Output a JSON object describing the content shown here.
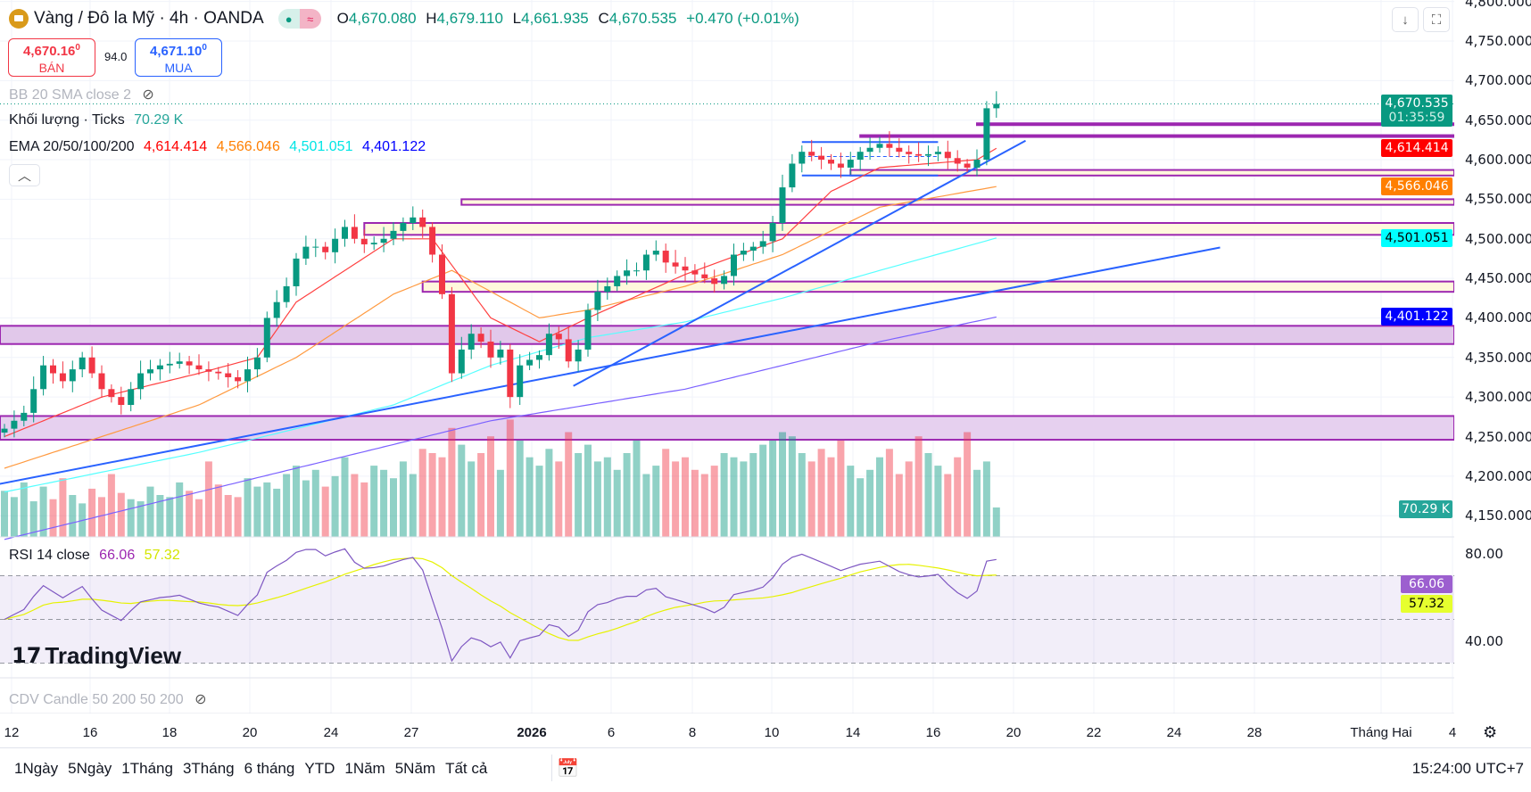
{
  "header": {
    "symbol": "Vàng / Đô la Mỹ · 4h · OANDA",
    "o_label": "O",
    "o": "4,670.080",
    "h_label": "H",
    "h": "4,679.110",
    "l_label": "L",
    "l": "4,661.935",
    "c_label": "C",
    "c": "4,670.535",
    "change": "+0.470 (+0.01%)",
    "market_open_icon": "dot-icon",
    "compare_icon": "wave-icon"
  },
  "trade": {
    "sell_price": "4,670.16",
    "sell_sup": "0",
    "sell_label": "BÁN",
    "spread": "94.0",
    "buy_price": "4,671.10",
    "buy_sup": "0",
    "buy_label": "MUA"
  },
  "indicators": {
    "bb": "BB 20 SMA close 2",
    "volume": "Khối lượng · Ticks",
    "volume_value": "70.29 K",
    "ema": "EMA 20/50/100/200",
    "ema20": "4,614.414",
    "ema50": "4,566.046",
    "ema100": "4,501.051",
    "ema200": "4,401.122",
    "rsi": "RSI 14 close",
    "rsi_value": "66.06",
    "rsi_ma": "57.32",
    "cdv": "CDV Candle 50 200 50 200"
  },
  "price_axis": [
    "4,800.000",
    "4,750.000",
    "4,700.000",
    "4,650.000",
    "4,600.000",
    "4,550.000",
    "4,500.000",
    "4,450.000",
    "4,400.000",
    "4,350.000",
    "4,300.000",
    "4,250.000",
    "4,200.000",
    "4,150.000"
  ],
  "price_axis_values": [
    4800,
    4750,
    4700,
    4650,
    4600,
    4550,
    4500,
    4450,
    4400,
    4350,
    4300,
    4250,
    4200,
    4150
  ],
  "rsi_axis": [
    "80.00",
    "40.00"
  ],
  "tags": {
    "last": "4,670.535",
    "countdown": "01:35:59",
    "ema20": "4,614.414",
    "ema50": "4,566.046",
    "ema100": "4,501.051",
    "ema200": "4,401.122",
    "volume": "70.29 K",
    "rsi": "66.06",
    "rsi_ma": "57.32"
  },
  "colors": {
    "up": "#089981",
    "down": "#F23645",
    "ema20": "#FF0000",
    "ema50": "#FF7F00",
    "ema100": "#00FFFF",
    "ema200": "#0000FF",
    "rsi": "#9C27B0",
    "rsi_ma": "#E6FF00",
    "drawing": "#9C27B0",
    "trend": "#2962FF"
  },
  "time_axis": [
    "12",
    "16",
    "18",
    "20",
    "24",
    "27",
    "2026",
    "6",
    "8",
    "10",
    "14",
    "16",
    "20",
    "22",
    "24",
    "28",
    "Tháng Hai",
    "4"
  ],
  "range_buttons": [
    "1Ngày",
    "5Ngày",
    "1Tháng",
    "3Tháng",
    "6 tháng",
    "YTD",
    "1Năm",
    "5Năm",
    "Tất cả"
  ],
  "clock": "15:24:00 UTC+7",
  "watermark": "TradingView",
  "chart_data": {
    "type": "candlestick",
    "first_open": 4255,
    "closes": [
      4260,
      4270,
      4280,
      4310,
      4340,
      4330,
      4320,
      4335,
      4350,
      4330,
      4310,
      4300,
      4290,
      4310,
      4330,
      4335,
      4340,
      4342,
      4345,
      4340,
      4335,
      4332,
      4330,
      4325,
      4320,
      4335,
      4350,
      4400,
      4420,
      4440,
      4475,
      4490,
      4490,
      4483,
      4500,
      4515,
      4500,
      4493,
      4495,
      4500,
      4510,
      4520,
      4527,
      4515,
      4480,
      4430,
      4330,
      4360,
      4380,
      4370,
      4350,
      4360,
      4300,
      4340,
      4347,
      4353,
      4380,
      4373,
      4345,
      4360,
      4410,
      4433,
      4440,
      4453,
      4460,
      4460,
      4480,
      4485,
      4470,
      4465,
      4460,
      4455,
      4450,
      4443,
      4453,
      4480,
      4485,
      4490,
      4497,
      4520,
      4565,
      4595,
      4610,
      4605,
      4600,
      4595,
      4590,
      4600,
      4610,
      4615,
      4620,
      4615,
      4610,
      4607,
      4605,
      4607,
      4610,
      4602,
      4595,
      4590,
      4600,
      4665,
      4670.535
    ],
    "volumes_k": [
      110,
      95,
      130,
      85,
      120,
      90,
      140,
      100,
      80,
      115,
      95,
      150,
      105,
      90,
      85,
      120,
      100,
      95,
      130,
      110,
      90,
      180,
      125,
      100,
      95,
      140,
      120,
      130,
      115,
      150,
      170,
      135,
      160,
      120,
      145,
      190,
      150,
      130,
      170,
      160,
      140,
      180,
      150,
      210,
      200,
      190,
      260,
      220,
      180,
      200,
      240,
      160,
      280,
      230,
      190,
      170,
      210,
      180,
      250,
      200,
      220,
      180,
      190,
      160,
      200,
      230,
      150,
      170,
      210,
      180,
      190,
      160,
      150,
      170,
      200,
      190,
      180,
      200,
      220,
      230,
      250,
      240,
      200,
      180,
      210,
      190,
      230,
      170,
      140,
      160,
      190,
      210,
      150,
      180,
      240,
      200,
      170,
      150,
      190,
      250,
      160,
      180,
      70.29
    ],
    "ema_keypoints": {
      "ema20": [
        [
          0,
          4250
        ],
        [
          10,
          4300
        ],
        [
          20,
          4330
        ],
        [
          26,
          4350
        ],
        [
          30,
          4420
        ],
        [
          40,
          4500
        ],
        [
          44,
          4500
        ],
        [
          50,
          4400
        ],
        [
          55,
          4370
        ],
        [
          60,
          4400
        ],
        [
          70,
          4455
        ],
        [
          80,
          4500
        ],
        [
          85,
          4560
        ],
        [
          90,
          4590
        ],
        [
          100,
          4600
        ],
        [
          102,
          4614.414
        ]
      ],
      "ema50": [
        [
          0,
          4210
        ],
        [
          20,
          4290
        ],
        [
          30,
          4350
        ],
        [
          40,
          4430
        ],
        [
          46,
          4460
        ],
        [
          55,
          4400
        ],
        [
          60,
          4410
        ],
        [
          70,
          4440
        ],
        [
          80,
          4480
        ],
        [
          90,
          4540
        ],
        [
          102,
          4566.046
        ]
      ],
      "ema100": [
        [
          0,
          4180
        ],
        [
          20,
          4230
        ],
        [
          40,
          4290
        ],
        [
          50,
          4340
        ],
        [
          60,
          4375
        ],
        [
          70,
          4395
        ],
        [
          80,
          4425
        ],
        [
          90,
          4460
        ],
        [
          102,
          4501.051
        ]
      ],
      "ema200": [
        [
          0,
          4120
        ],
        [
          20,
          4180
        ],
        [
          40,
          4240
        ],
        [
          50,
          4270
        ],
        [
          60,
          4290
        ],
        [
          70,
          4310
        ],
        [
          80,
          4340
        ],
        [
          90,
          4370
        ],
        [
          102,
          4401.122
        ]
      ]
    },
    "zones": [
      {
        "from": -1,
        "to": 150,
        "top": 4390,
        "bottom": 4367,
        "fill": "#e1c8ea"
      },
      {
        "from": -1,
        "to": 150,
        "top": 4276,
        "bottom": 4246,
        "fill": "#e6d0ef"
      },
      {
        "from": 43,
        "to": 150,
        "top": 4446,
        "bottom": 4433,
        "fill": "#fff8dc"
      },
      {
        "from": 37,
        "to": 150,
        "top": 4520,
        "bottom": 4505,
        "fill": "#fff8dc"
      },
      {
        "from": 47,
        "to": 150,
        "top": 4550,
        "bottom": 4543,
        "fill": "#fff8dc"
      },
      {
        "from": 87,
        "to": 150,
        "top": 4587,
        "bottom": 4580,
        "fill": "#fff8dc"
      },
      {
        "from": 88,
        "to": 150,
        "top": 4631,
        "bottom": 4630,
        "fill": "#9C27B0"
      },
      {
        "from": 100,
        "to": 150,
        "top": 4646,
        "bottom": 4645,
        "fill": "#9C27B0"
      }
    ],
    "trendlines": [
      {
        "x1": -1,
        "y1": 4189,
        "x2": 125,
        "y2": 4489
      },
      {
        "x1": 58.5,
        "y1": 4314,
        "x2": 105,
        "y2": 4624
      }
    ],
    "range_box": {
      "from": 82,
      "to": 96,
      "top": 4628,
      "bottom": 4580
    },
    "ylim": [
      4140,
      4810
    ],
    "rsi_ylim": [
      30,
      90
    ]
  }
}
